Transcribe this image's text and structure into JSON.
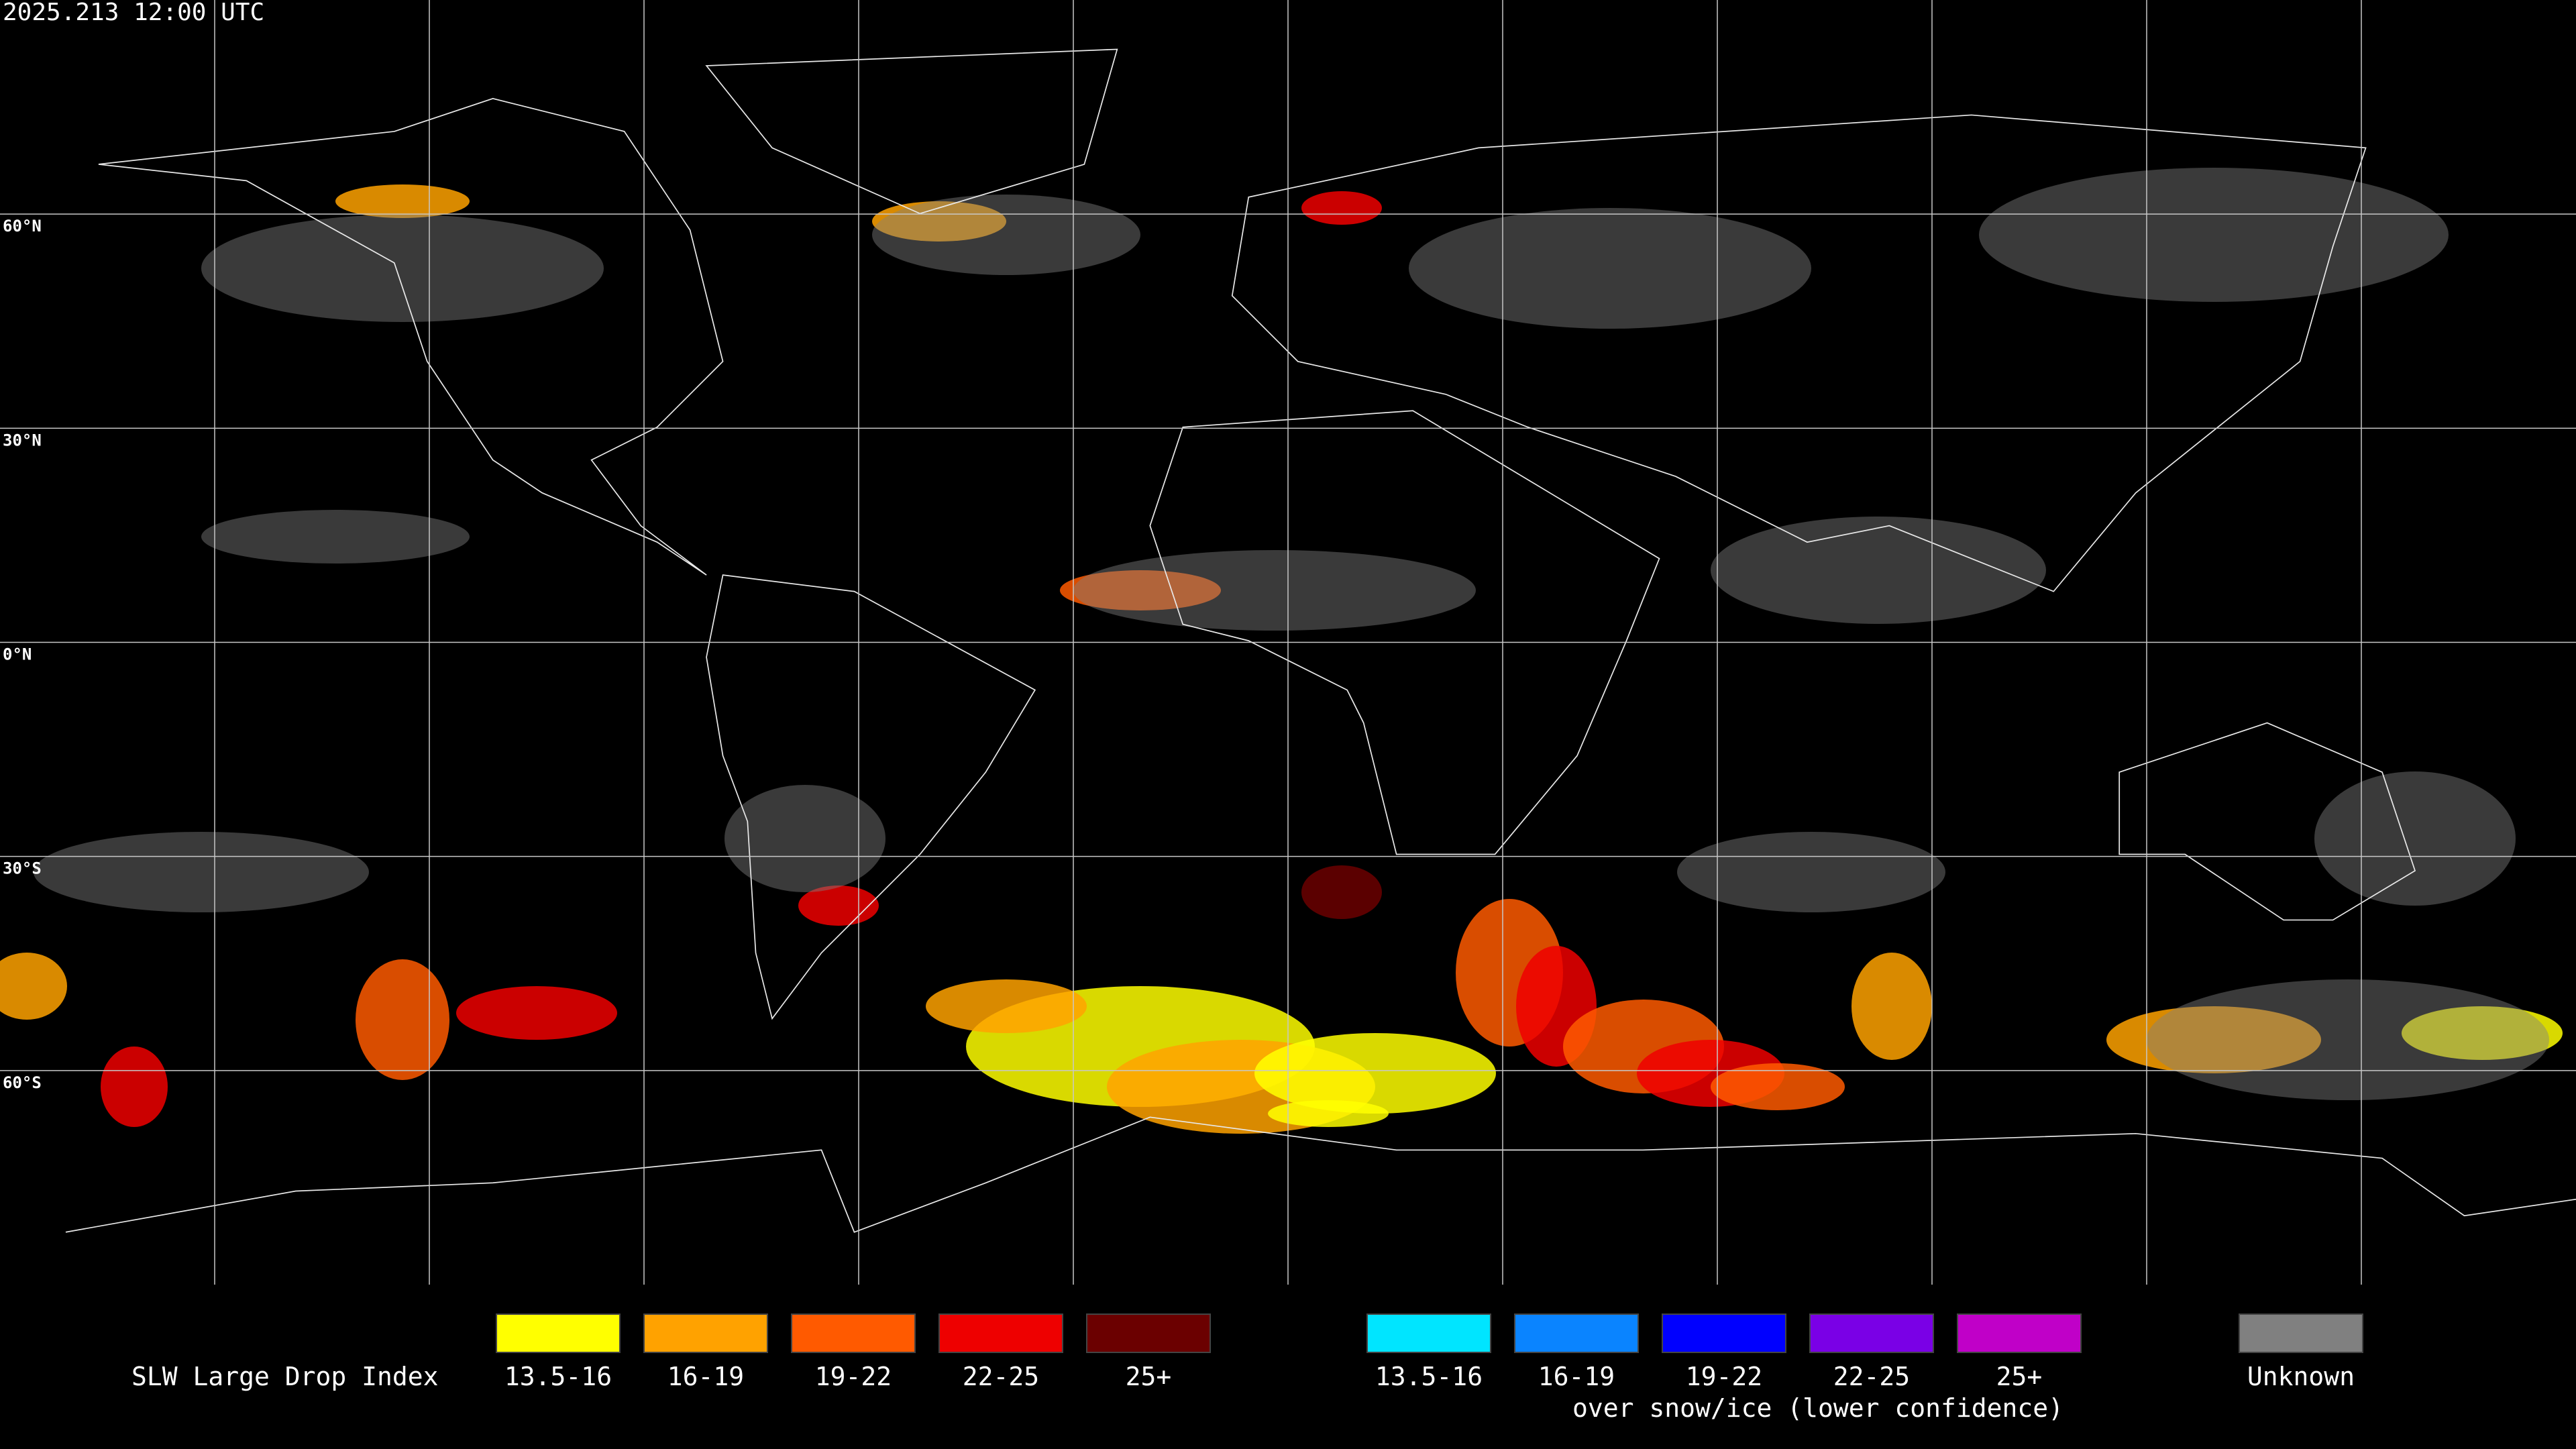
{
  "header": {
    "timestamp": "2025.213 12:00 UTC"
  },
  "map": {
    "latitude_labels": [
      "60°N",
      "30°N",
      "0°N",
      "30°S",
      "60°S"
    ]
  },
  "legend": {
    "title": "SLW Large Drop Index",
    "liquid": [
      {
        "label": "13.5-16",
        "color": "#ffff00"
      },
      {
        "label": "16-19",
        "color": "#ffa200"
      },
      {
        "label": "19-22",
        "color": "#ff5a00"
      },
      {
        "label": "22-25",
        "color": "#ee0000"
      },
      {
        "label": "25+",
        "color": "#6b0000"
      }
    ],
    "snow_ice": [
      {
        "label": "13.5-16",
        "color": "#00e5ff"
      },
      {
        "label": "16-19",
        "color": "#0a84ff"
      },
      {
        "label": "19-22",
        "color": "#0000ff"
      },
      {
        "label": "22-25",
        "color": "#7a00e6"
      },
      {
        "label": "25+",
        "color": "#c000c8"
      }
    ],
    "snow_ice_note": "over snow/ice (lower confidence)",
    "unknown": {
      "label": "Unknown",
      "color": "#808080"
    }
  }
}
